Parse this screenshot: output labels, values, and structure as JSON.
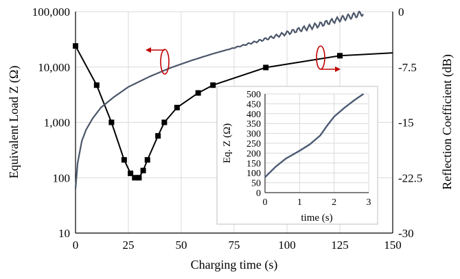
{
  "chart_data": {
    "type": "line",
    "xlabel": "Charging time (s)",
    "ylabel": "Equivalent Load Z (Ω)",
    "y2label": "Reflection Coefficient (dB)",
    "xlim": [
      0,
      150
    ],
    "ylim": [
      10,
      100000
    ],
    "yscale": "log",
    "y2lim": [
      -30,
      0
    ],
    "grid": true,
    "xticks": [
      "0",
      "25",
      "50",
      "75",
      "100",
      "125",
      "150"
    ],
    "yticks": [
      "10",
      "100",
      "1,000",
      "10,000",
      "100,000"
    ],
    "y2ticks": [
      "-30",
      "-22.5",
      "-15",
      "-7.5",
      "0"
    ],
    "series": [
      {
        "axis": "left",
        "color": "#000000",
        "marker": "square",
        "x": [
          0,
          10,
          17,
          23,
          26,
          28,
          30,
          32,
          34,
          39,
          42,
          48,
          58,
          65,
          90,
          125,
          150
        ],
        "y": [
          24000,
          4700,
          1000,
          210,
          120,
          100,
          100,
          135,
          210,
          570,
          1000,
          1850,
          3400,
          4700,
          9800,
          16000,
          18000
        ],
        "markers_x": [
          0,
          10,
          17,
          23,
          26,
          28,
          30,
          32,
          34,
          39,
          42,
          48,
          58,
          65,
          90,
          125
        ],
        "markers_y": [
          24000,
          4700,
          1000,
          210,
          120,
          100,
          100,
          135,
          210,
          570,
          1000,
          1850,
          3400,
          4700,
          9800,
          16000
        ]
      },
      {
        "axis": "right",
        "color": "#4a5568",
        "marker": "none",
        "x": [
          0,
          1,
          3,
          5,
          8,
          12,
          18,
          25,
          35,
          45,
          55,
          65,
          75,
          85,
          95,
          105,
          115,
          125,
          132,
          136
        ],
        "y": [
          -24,
          -20.5,
          -17.5,
          -16,
          -14.5,
          -13,
          -11.6,
          -10.2,
          -8.8,
          -7.6,
          -6.6,
          -5.7,
          -4.9,
          -4.1,
          -3.3,
          -2.5,
          -1.8,
          -1.0,
          -0.5,
          -0.2
        ]
      }
    ],
    "annotations": {
      "left_axis_arrow_color": "#c00000",
      "right_axis_arrow_color": "#c00000"
    },
    "inset": {
      "type": "line",
      "xlabel": "time (s)",
      "ylabel": "Eq. Z (Ω)",
      "xlim": [
        0,
        3
      ],
      "ylim": [
        0,
        500
      ],
      "xticks": [
        "0",
        "1",
        "2",
        "3"
      ],
      "yticks": [
        "0",
        "50",
        "100",
        "150",
        "200",
        "250",
        "300",
        "350",
        "400",
        "450",
        "500"
      ],
      "color": "#4a5a73",
      "x": [
        0,
        0.3,
        0.6,
        1.0,
        1.3,
        1.6,
        1.8,
        2.0,
        2.3,
        2.6,
        2.85
      ],
      "y": [
        78,
        130,
        172,
        212,
        245,
        290,
        340,
        385,
        430,
        470,
        500
      ]
    }
  }
}
